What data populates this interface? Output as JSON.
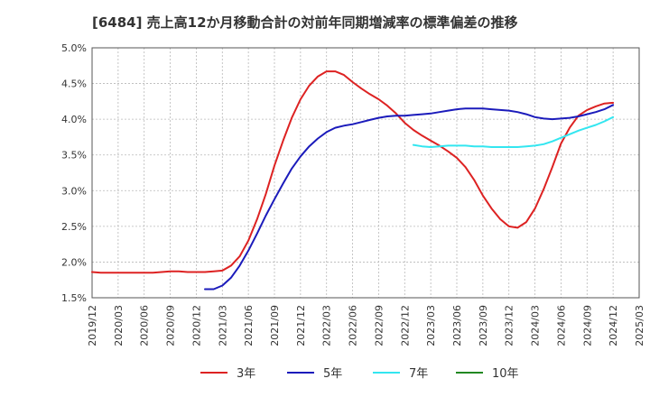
{
  "chart_data": {
    "type": "line",
    "title": "[6484]  売上高12か月移動合計の対前年同期増減率の標準偏差の推移",
    "x_ticks": [
      "2019/12",
      "2020/03",
      "2020/06",
      "2020/09",
      "2020/12",
      "2021/03",
      "2021/06",
      "2021/09",
      "2021/12",
      "2022/03",
      "2022/06",
      "2022/09",
      "2022/12",
      "2023/03",
      "2023/06",
      "2023/09",
      "2023/12",
      "2024/03",
      "2024/06",
      "2024/09",
      "2024/12",
      "2025/03"
    ],
    "y_ticks": [
      "1.5%",
      "2.0%",
      "2.5%",
      "3.0%",
      "3.5%",
      "4.0%",
      "4.5%",
      "5.0%"
    ],
    "ylim": [
      1.5,
      5.0
    ],
    "xlim": [
      "2019/12",
      "2025/03"
    ],
    "grid": true,
    "legend_position": "bottom",
    "series": [
      {
        "name": "3年",
        "color": "#dd2222",
        "points": [
          [
            "2019/12",
            1.86
          ],
          [
            "2020/01",
            1.85
          ],
          [
            "2020/02",
            1.85
          ],
          [
            "2020/03",
            1.85
          ],
          [
            "2020/04",
            1.85
          ],
          [
            "2020/05",
            1.85
          ],
          [
            "2020/06",
            1.85
          ],
          [
            "2020/07",
            1.85
          ],
          [
            "2020/08",
            1.86
          ],
          [
            "2020/09",
            1.87
          ],
          [
            "2020/10",
            1.87
          ],
          [
            "2020/11",
            1.86
          ],
          [
            "2020/12",
            1.86
          ],
          [
            "2021/01",
            1.86
          ],
          [
            "2021/02",
            1.87
          ],
          [
            "2021/03",
            1.88
          ],
          [
            "2021/04",
            1.95
          ],
          [
            "2021/05",
            2.08
          ],
          [
            "2021/06",
            2.3
          ],
          [
            "2021/07",
            2.6
          ],
          [
            "2021/08",
            2.95
          ],
          [
            "2021/09",
            3.35
          ],
          [
            "2021/10",
            3.7
          ],
          [
            "2021/11",
            4.02
          ],
          [
            "2021/12",
            4.28
          ],
          [
            "2022/01",
            4.47
          ],
          [
            "2022/02",
            4.6
          ],
          [
            "2022/03",
            4.67
          ],
          [
            "2022/04",
            4.67
          ],
          [
            "2022/05",
            4.62
          ],
          [
            "2022/06",
            4.52
          ],
          [
            "2022/07",
            4.43
          ],
          [
            "2022/08",
            4.35
          ],
          [
            "2022/09",
            4.28
          ],
          [
            "2022/10",
            4.19
          ],
          [
            "2022/11",
            4.08
          ],
          [
            "2022/12",
            3.95
          ],
          [
            "2023/01",
            3.85
          ],
          [
            "2023/02",
            3.77
          ],
          [
            "2023/03",
            3.7
          ],
          [
            "2023/04",
            3.63
          ],
          [
            "2023/05",
            3.55
          ],
          [
            "2023/06",
            3.46
          ],
          [
            "2023/07",
            3.33
          ],
          [
            "2023/08",
            3.15
          ],
          [
            "2023/09",
            2.93
          ],
          [
            "2023/10",
            2.75
          ],
          [
            "2023/11",
            2.6
          ],
          [
            "2023/12",
            2.5
          ],
          [
            "2024/01",
            2.48
          ],
          [
            "2024/02",
            2.56
          ],
          [
            "2024/03",
            2.75
          ],
          [
            "2024/04",
            3.02
          ],
          [
            "2024/05",
            3.33
          ],
          [
            "2024/06",
            3.66
          ],
          [
            "2024/07",
            3.88
          ],
          [
            "2024/08",
            4.05
          ],
          [
            "2024/09",
            4.13
          ],
          [
            "2024/10",
            4.18
          ],
          [
            "2024/11",
            4.22
          ],
          [
            "2024/12",
            4.23
          ]
        ]
      },
      {
        "name": "5年",
        "color": "#1b1bbb",
        "points": [
          [
            "2021/01",
            1.62
          ],
          [
            "2021/02",
            1.62
          ],
          [
            "2021/03",
            1.67
          ],
          [
            "2021/04",
            1.78
          ],
          [
            "2021/05",
            1.95
          ],
          [
            "2021/06",
            2.16
          ],
          [
            "2021/07",
            2.4
          ],
          [
            "2021/08",
            2.65
          ],
          [
            "2021/09",
            2.88
          ],
          [
            "2021/10",
            3.1
          ],
          [
            "2021/11",
            3.31
          ],
          [
            "2021/12",
            3.48
          ],
          [
            "2022/01",
            3.62
          ],
          [
            "2022/02",
            3.73
          ],
          [
            "2022/03",
            3.82
          ],
          [
            "2022/04",
            3.88
          ],
          [
            "2022/05",
            3.91
          ],
          [
            "2022/06",
            3.93
          ],
          [
            "2022/07",
            3.96
          ],
          [
            "2022/08",
            3.99
          ],
          [
            "2022/09",
            4.02
          ],
          [
            "2022/10",
            4.04
          ],
          [
            "2022/11",
            4.05
          ],
          [
            "2022/12",
            4.05
          ],
          [
            "2023/01",
            4.06
          ],
          [
            "2023/02",
            4.07
          ],
          [
            "2023/03",
            4.08
          ],
          [
            "2023/04",
            4.1
          ],
          [
            "2023/05",
            4.12
          ],
          [
            "2023/06",
            4.14
          ],
          [
            "2023/07",
            4.15
          ],
          [
            "2023/08",
            4.15
          ],
          [
            "2023/09",
            4.15
          ],
          [
            "2023/10",
            4.14
          ],
          [
            "2023/11",
            4.13
          ],
          [
            "2023/12",
            4.12
          ],
          [
            "2024/01",
            4.1
          ],
          [
            "2024/02",
            4.07
          ],
          [
            "2024/03",
            4.03
          ],
          [
            "2024/04",
            4.01
          ],
          [
            "2024/05",
            4.0
          ],
          [
            "2024/06",
            4.01
          ],
          [
            "2024/07",
            4.02
          ],
          [
            "2024/08",
            4.04
          ],
          [
            "2024/09",
            4.07
          ],
          [
            "2024/10",
            4.1
          ],
          [
            "2024/11",
            4.14
          ],
          [
            "2024/12",
            4.2
          ]
        ]
      },
      {
        "name": "7年",
        "color": "#33e6f0",
        "points": [
          [
            "2023/01",
            3.64
          ],
          [
            "2023/02",
            3.62
          ],
          [
            "2023/03",
            3.61
          ],
          [
            "2023/04",
            3.62
          ],
          [
            "2023/05",
            3.63
          ],
          [
            "2023/06",
            3.63
          ],
          [
            "2023/07",
            3.63
          ],
          [
            "2023/08",
            3.62
          ],
          [
            "2023/09",
            3.62
          ],
          [
            "2023/10",
            3.61
          ],
          [
            "2023/11",
            3.61
          ],
          [
            "2023/12",
            3.61
          ],
          [
            "2024/01",
            3.61
          ],
          [
            "2024/02",
            3.62
          ],
          [
            "2024/03",
            3.63
          ],
          [
            "2024/04",
            3.65
          ],
          [
            "2024/05",
            3.69
          ],
          [
            "2024/06",
            3.74
          ],
          [
            "2024/07",
            3.79
          ],
          [
            "2024/08",
            3.84
          ],
          [
            "2024/09",
            3.88
          ],
          [
            "2024/10",
            3.92
          ],
          [
            "2024/11",
            3.97
          ],
          [
            "2024/12",
            4.03
          ]
        ]
      },
      {
        "name": "10年",
        "color": "#228822",
        "points": []
      }
    ]
  }
}
